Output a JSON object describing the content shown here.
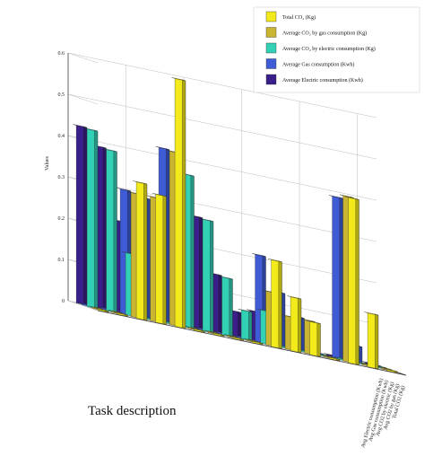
{
  "chart_data": {
    "type": "bar",
    "subtype": "3d-grouped",
    "title": "",
    "xlabel": "Task description",
    "ylabel": "Values",
    "ylim": [
      0,
      0.6
    ],
    "yticks": [
      "0",
      "0.1",
      "0.2",
      "0.3",
      "0.4",
      "0.5",
      "0.6"
    ],
    "grid": true,
    "legend_position": "top-right",
    "series": [
      {
        "name": "Total CO₂ (Kg)",
        "color": "#f2ea1a",
        "values": [
          0,
          0,
          0.33,
          0.31,
          0.6,
          0,
          0,
          0,
          0,
          0.21,
          0.13,
          0.08,
          0,
          0.4,
          0.13,
          0
        ]
      },
      {
        "name": "Average CO₂ by gas consumption (Kg)",
        "color": "#c9b531",
        "values": [
          0,
          0,
          0.3,
          0.3,
          0.42,
          0,
          0,
          0,
          0,
          0.13,
          0.08,
          0.08,
          0,
          0.4,
          0,
          0
        ]
      },
      {
        "name": "Average CO₂ by electric consumption (Kg)",
        "color": "#32d1b6",
        "values": [
          0.43,
          0.39,
          0.15,
          0,
          0,
          0.37,
          0.27,
          0.14,
          0.07,
          0.08,
          0,
          0,
          0,
          0,
          0,
          0
        ]
      },
      {
        "name": "Average Gas consumption (Kwh)",
        "color": "#3f5bd6",
        "values": [
          0,
          0,
          0.3,
          0.29,
          0.42,
          0,
          0,
          0,
          0,
          0.21,
          0.13,
          0.08,
          0,
          0.39,
          0.04,
          0
        ]
      },
      {
        "name": "Average Electric consumption (Kwh)",
        "color": "#3a1f8a",
        "values": [
          0.43,
          0.39,
          0.22,
          0,
          0,
          0.37,
          0.27,
          0.14,
          0.06,
          0.07,
          0,
          0,
          0,
          0,
          0,
          0
        ]
      }
    ],
    "legend": [
      "Total CO₂ (Kg)",
      "Average CO₂ by gas consumption (Kg)",
      "Average CO₂ by electric consumption (Kg)",
      "Average Gas consumption (Kwh)",
      "Average Electric consumption (Kwh)"
    ],
    "depth_tick_labels": [
      "Avg Electric consumption (Kwh)",
      "Avg Gas consumption (Kwh)",
      "Avg CO2 by electric (Kg)",
      "Avg CO2 by gas (Kg)",
      "Total CO2 (Kg)"
    ]
  }
}
